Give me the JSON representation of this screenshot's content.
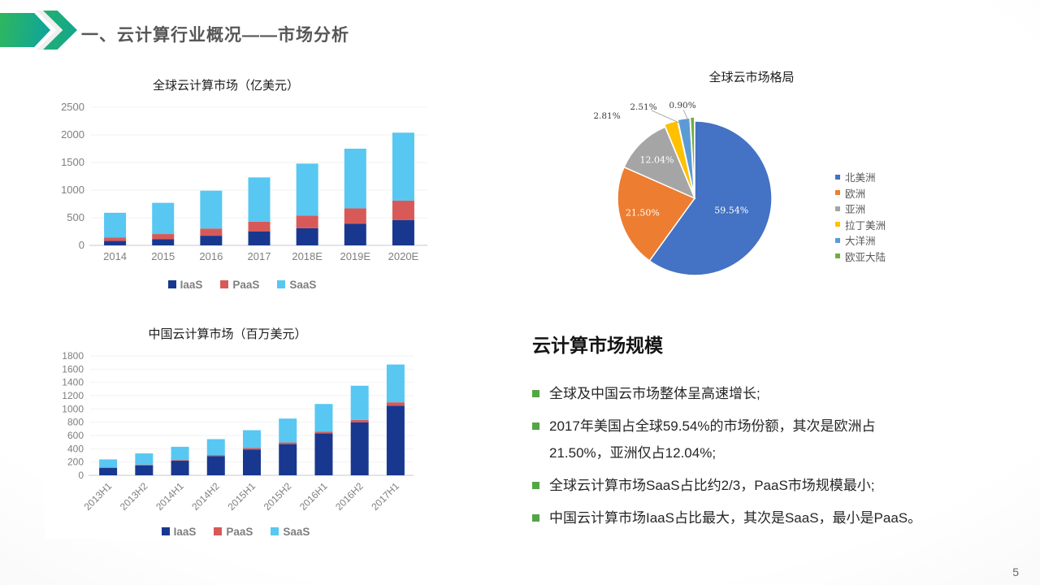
{
  "slide": {
    "title": "一、云计算行业概况——市场分析",
    "page_number": "5"
  },
  "chart_data": [
    {
      "type": "bar",
      "stacked": true,
      "title": "全球云计算市场（亿美元）",
      "categories": [
        "2014",
        "2015",
        "2016",
        "2017",
        "2018E",
        "2019E",
        "2020E"
      ],
      "series": [
        {
          "name": "IaaS",
          "color": "#183890",
          "values": [
            80,
            110,
            175,
            250,
            310,
            390,
            460
          ]
        },
        {
          "name": "PaaS",
          "color": "#D85A58",
          "values": [
            60,
            95,
            130,
            180,
            230,
            280,
            350
          ]
        },
        {
          "name": "SaaS",
          "color": "#58C7F2",
          "values": [
            450,
            565,
            685,
            800,
            940,
            1080,
            1230
          ]
        }
      ],
      "ylim": [
        0,
        2500
      ],
      "ystep": 500,
      "grid": "faint-horizontal",
      "legend_position": "bottom"
    },
    {
      "type": "pie",
      "title": "全球云市场格局",
      "slices": [
        {
          "name": "北美洲",
          "value": 59.54,
          "label": "59.54%",
          "color": "#4472C4"
        },
        {
          "name": "欧洲",
          "value": 21.5,
          "label": "21.50%",
          "color": "#ED7D31"
        },
        {
          "name": "亚洲",
          "value": 12.04,
          "label": "12.04%",
          "color": "#A5A5A5"
        },
        {
          "name": "拉丁美洲",
          "value": 2.81,
          "label": "2.81%",
          "color": "#FFC000"
        },
        {
          "name": "大洋洲",
          "value": 2.51,
          "label": "2.51%",
          "color": "#5B9BD5"
        },
        {
          "name": "欧亚大陆",
          "value": 0.9,
          "label": "0.90%",
          "color": "#70AD47"
        }
      ],
      "start_angle": "top",
      "direction": "clockwise",
      "legend_position": "right"
    },
    {
      "type": "bar",
      "stacked": true,
      "title": "中国云计算市场（百万美元）",
      "categories": [
        "2013H1",
        "2013H2",
        "2014H1",
        "2014H2",
        "2015H1",
        "2015H2",
        "2016H1",
        "2016H2",
        "2017H1"
      ],
      "series": [
        {
          "name": "IaaS",
          "color": "#183890",
          "values": [
            110,
            150,
            220,
            290,
            390,
            470,
            630,
            800,
            1050
          ]
        },
        {
          "name": "PaaS",
          "color": "#D85A58",
          "values": [
            10,
            10,
            10,
            15,
            20,
            25,
            25,
            35,
            50
          ]
        },
        {
          "name": "SaaS",
          "color": "#58C7F2",
          "values": [
            120,
            170,
            200,
            240,
            270,
            360,
            420,
            515,
            570
          ]
        }
      ],
      "ylim": [
        0,
        1800
      ],
      "ystep": 200,
      "grid": "faint-horizontal",
      "legend_position": "bottom"
    }
  ],
  "text_panel": {
    "heading": "云计算市场规模",
    "bullets": [
      {
        "lines": [
          "全球及中国云市场整体呈高速增长;"
        ]
      },
      {
        "lines": [
          "2017年美国占全球59.54%的市场份额，其次是欧洲占",
          "21.50%，亚洲仅占12.04%;"
        ]
      },
      {
        "lines": [
          "全球云计算市场SaaS占比约2/3，PaaS市场规模最小;"
        ]
      },
      {
        "lines": [
          "中国云计算市场IaaS占比最大，其次是SaaS，最小是PaaS。"
        ]
      }
    ]
  }
}
